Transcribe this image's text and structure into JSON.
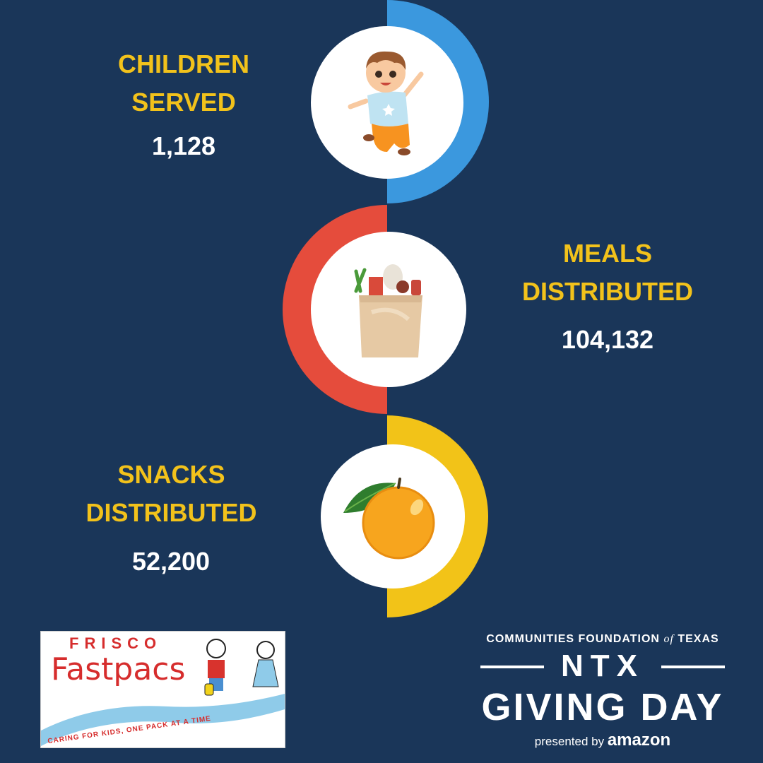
{
  "stats": [
    {
      "label_line1": "CHILDREN",
      "label_line2": "SERVED",
      "value": "1,128",
      "icon": "jumping-child-icon",
      "accent": "#3b98de"
    },
    {
      "label_line1": "MEALS",
      "label_line2": "DISTRIBUTED",
      "value": "104,132",
      "icon": "grocery-bag-icon",
      "accent": "#e54c3c"
    },
    {
      "label_line1": "SNACKS",
      "label_line2": "DISTRIBUTED",
      "value": "52,200",
      "icon": "orange-icon",
      "accent": "#f2c318"
    }
  ],
  "colors": {
    "background": "#1a3659",
    "label": "#f2c21b",
    "value": "#ffffff"
  },
  "logo_left": {
    "line1": "FRISCO",
    "line2": "Fastpacs",
    "tagline": "CARING FOR KIDS, ONE PACK AT A TIME"
  },
  "logo_right": {
    "top_line_pre": "COMMUNITIES FOUNDATION",
    "top_line_of": "of",
    "top_line_post": "TEXAS",
    "ntx": "NTX",
    "giving_day": "GIVING DAY",
    "presented_by": "presented by",
    "brand": "amazon"
  }
}
